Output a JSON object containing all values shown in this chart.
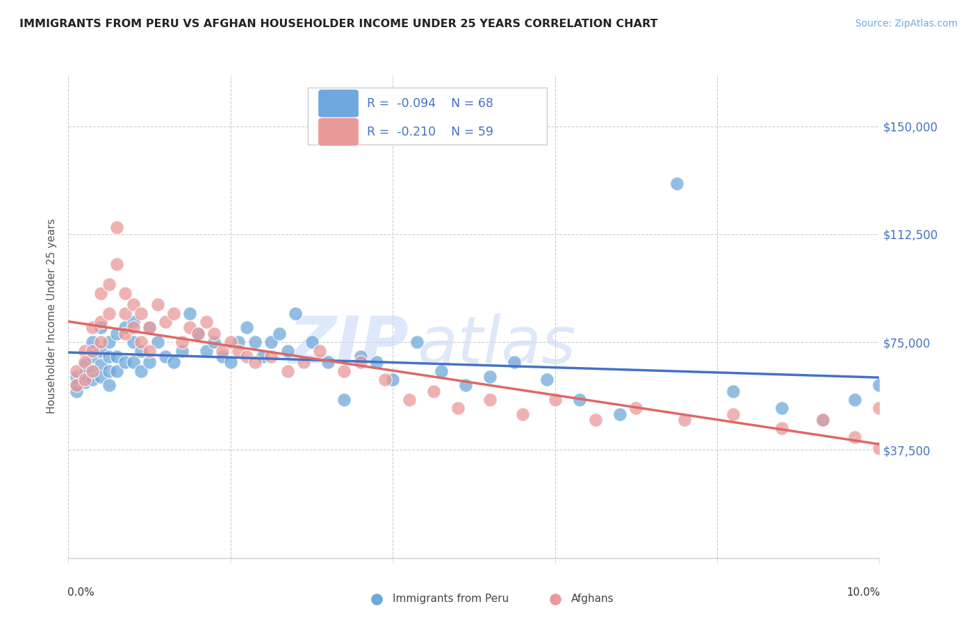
{
  "title": "IMMIGRANTS FROM PERU VS AFGHAN HOUSEHOLDER INCOME UNDER 25 YEARS CORRELATION CHART",
  "source": "Source: ZipAtlas.com",
  "ylabel": "Householder Income Under 25 years",
  "xlim": [
    0.0,
    0.1
  ],
  "ylim": [
    0,
    168000
  ],
  "legend_label1": "Immigrants from Peru",
  "legend_label2": "Afghans",
  "r1": "-0.094",
  "n1": "68",
  "r2": "-0.210",
  "n2": "59",
  "color_peru": "#6fa8dc",
  "color_afghan": "#ea9999",
  "color_line_peru": "#4472c4",
  "color_line_afghan": "#e06666",
  "color_axis": "#4472c4",
  "watermark_zip": "ZIP",
  "watermark_atlas": "atlas",
  "peru_x": [
    0.001,
    0.001,
    0.001,
    0.002,
    0.002,
    0.002,
    0.003,
    0.003,
    0.003,
    0.003,
    0.004,
    0.004,
    0.004,
    0.004,
    0.005,
    0.005,
    0.005,
    0.005,
    0.006,
    0.006,
    0.006,
    0.007,
    0.007,
    0.008,
    0.008,
    0.008,
    0.009,
    0.009,
    0.01,
    0.01,
    0.011,
    0.012,
    0.013,
    0.014,
    0.015,
    0.016,
    0.017,
    0.018,
    0.019,
    0.02,
    0.021,
    0.022,
    0.023,
    0.024,
    0.025,
    0.026,
    0.027,
    0.028,
    0.03,
    0.032,
    0.034,
    0.036,
    0.038,
    0.04,
    0.043,
    0.046,
    0.049,
    0.052,
    0.055,
    0.059,
    0.063,
    0.068,
    0.075,
    0.082,
    0.088,
    0.093,
    0.097,
    0.1
  ],
  "peru_y": [
    63000,
    60000,
    58000,
    67000,
    64000,
    61000,
    75000,
    70000,
    65000,
    62000,
    80000,
    72000,
    67000,
    63000,
    75000,
    70000,
    65000,
    60000,
    78000,
    70000,
    65000,
    80000,
    68000,
    82000,
    75000,
    68000,
    72000,
    65000,
    80000,
    68000,
    75000,
    70000,
    68000,
    72000,
    85000,
    78000,
    72000,
    75000,
    70000,
    68000,
    75000,
    80000,
    75000,
    70000,
    75000,
    78000,
    72000,
    85000,
    75000,
    68000,
    55000,
    70000,
    68000,
    62000,
    75000,
    65000,
    60000,
    63000,
    68000,
    62000,
    55000,
    50000,
    130000,
    58000,
    52000,
    48000,
    55000,
    60000
  ],
  "afghan_x": [
    0.001,
    0.001,
    0.002,
    0.002,
    0.002,
    0.003,
    0.003,
    0.003,
    0.004,
    0.004,
    0.004,
    0.005,
    0.005,
    0.006,
    0.006,
    0.007,
    0.007,
    0.007,
    0.008,
    0.008,
    0.009,
    0.009,
    0.01,
    0.01,
    0.011,
    0.012,
    0.013,
    0.014,
    0.015,
    0.016,
    0.017,
    0.018,
    0.019,
    0.02,
    0.021,
    0.022,
    0.023,
    0.025,
    0.027,
    0.029,
    0.031,
    0.034,
    0.036,
    0.039,
    0.042,
    0.045,
    0.048,
    0.052,
    0.056,
    0.06,
    0.065,
    0.07,
    0.076,
    0.082,
    0.088,
    0.093,
    0.097,
    0.1,
    0.1
  ],
  "afghan_y": [
    65000,
    60000,
    72000,
    68000,
    62000,
    80000,
    72000,
    65000,
    92000,
    82000,
    75000,
    95000,
    85000,
    115000,
    102000,
    92000,
    85000,
    78000,
    88000,
    80000,
    85000,
    75000,
    80000,
    72000,
    88000,
    82000,
    85000,
    75000,
    80000,
    78000,
    82000,
    78000,
    72000,
    75000,
    72000,
    70000,
    68000,
    70000,
    65000,
    68000,
    72000,
    65000,
    68000,
    62000,
    55000,
    58000,
    52000,
    55000,
    50000,
    55000,
    48000,
    52000,
    48000,
    50000,
    45000,
    48000,
    42000,
    52000,
    38000
  ]
}
